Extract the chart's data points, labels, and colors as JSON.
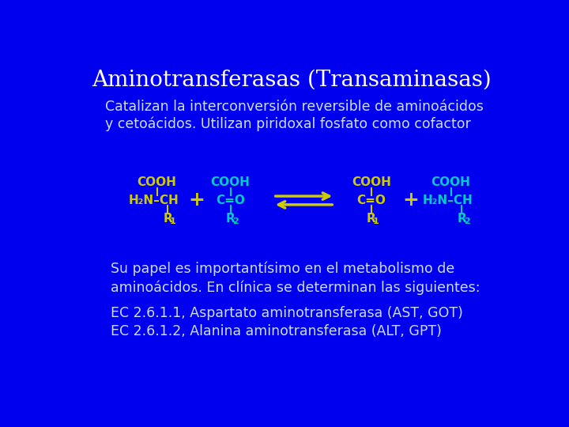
{
  "background_color": "#0000ee",
  "title": "Aminotransferasas (Transaminasas)",
  "title_color": "#ffffff",
  "title_fontsize": 20,
  "body_text_color": "#ccddff",
  "para1_line1": "Catalizan la interconversión reversible de aminoácidos",
  "para1_line2": "y cetoácidos. Utilizan piridoxal fosfato como cofactor",
  "para2_line1": "Su papel es importantísimo en el metabolismo de",
  "para2_line2": "aminoácidos. En clínica se determinan las siguientes:",
  "para3_line1": "EC 2.6.1.1, Aspartato aminotransferasa (AST, GOT)",
  "para3_line2": "EC 2.6.1.2, Alanina aminotransferasa (ALT, GPT)",
  "yellow": "#cccc00",
  "cyan": "#00cccc",
  "arrow_color": "#cccc00",
  "white": "#ffffff"
}
